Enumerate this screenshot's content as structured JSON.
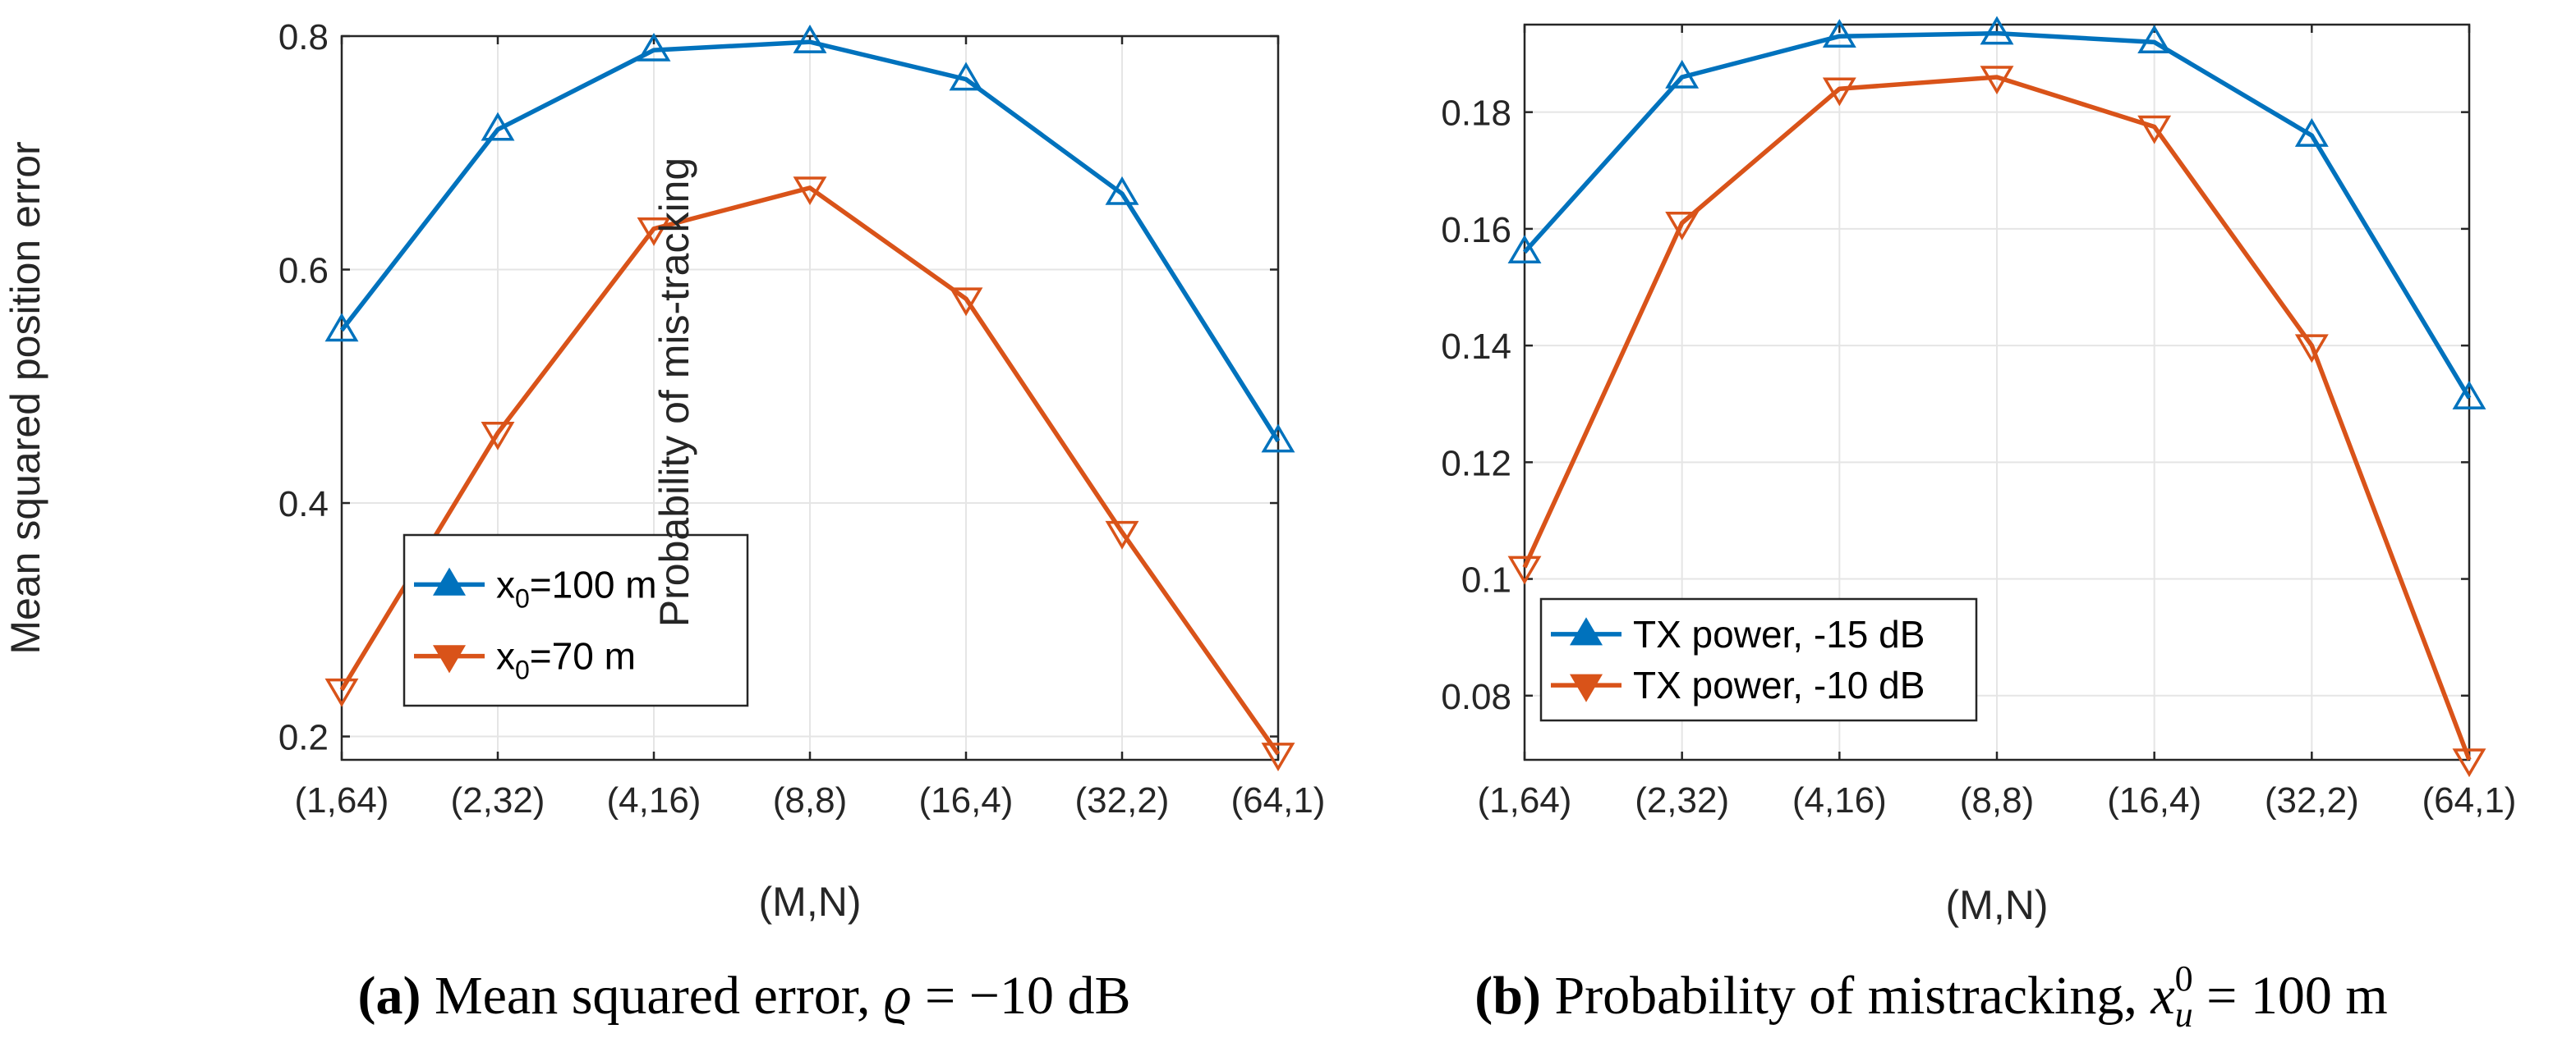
{
  "colors": {
    "series1": "#0072BD",
    "series2": "#D95319",
    "axis": "#262626",
    "grid": "#e5e5e5"
  },
  "chart_data": [
    {
      "type": "line",
      "title": "",
      "xlabel": "(M,N)",
      "ylabel": "Mean squared position error",
      "categories": [
        "(1,64)",
        "(2,32)",
        "(4,16)",
        "(8,8)",
        "(16,4)",
        "(32,2)",
        "(64,1)"
      ],
      "ylim": [
        0.18,
        0.8
      ],
      "yticks": [
        0.2,
        0.4,
        0.6,
        0.8
      ],
      "ytick_labels": [
        "0.2",
        "0.4",
        "0.6",
        "0.8"
      ],
      "grid": true,
      "legend_position": "bottom-left",
      "series": [
        {
          "name": "x0=100 m",
          "legend_base": "x",
          "legend_sub": "0",
          "legend_rest": "=100 m",
          "marker": "triangle-up",
          "color": "#0072BD",
          "values": [
            0.548,
            0.72,
            0.788,
            0.795,
            0.763,
            0.665,
            0.453
          ]
        },
        {
          "name": "x0=70 m",
          "legend_base": "x",
          "legend_sub": "0",
          "legend_rest": "=70 m",
          "marker": "triangle-down",
          "color": "#D95319",
          "values": [
            0.24,
            0.46,
            0.635,
            0.67,
            0.575,
            0.375,
            0.185
          ]
        }
      ],
      "caption": {
        "label": "(a)",
        "text": "Mean squared error, ",
        "symbol": "ϱ",
        "equals": " = −10 dB"
      }
    },
    {
      "type": "line",
      "title": "",
      "xlabel": "(M,N)",
      "ylabel": "Probability of mis-tracking",
      "categories": [
        "(1,64)",
        "(2,32)",
        "(4,16)",
        "(8,8)",
        "(16,4)",
        "(32,2)",
        "(64,1)"
      ],
      "ylim": [
        0.069,
        0.195
      ],
      "yticks": [
        0.08,
        0.1,
        0.12,
        0.14,
        0.16,
        0.18
      ],
      "ytick_labels": [
        "0.08",
        "0.1",
        "0.12",
        "0.14",
        "0.16",
        "0.18"
      ],
      "grid": true,
      "legend_position": "bottom-left",
      "series": [
        {
          "name": "TX power, -15 dB",
          "marker": "triangle-up",
          "color": "#0072BD",
          "values": [
            0.156,
            0.186,
            0.193,
            0.1935,
            0.192,
            0.176,
            0.131
          ]
        },
        {
          "name": "TX power, -10 dB",
          "marker": "triangle-down",
          "color": "#D95319",
          "values": [
            0.102,
            0.161,
            0.184,
            0.186,
            0.1775,
            0.14,
            0.069
          ]
        }
      ],
      "caption": {
        "label": "(b)",
        "text": "Probability of mistracking, ",
        "symbol": "x",
        "symbol_sub": "u",
        "symbol_sup": "0",
        "equals": " = 100 m"
      }
    }
  ]
}
